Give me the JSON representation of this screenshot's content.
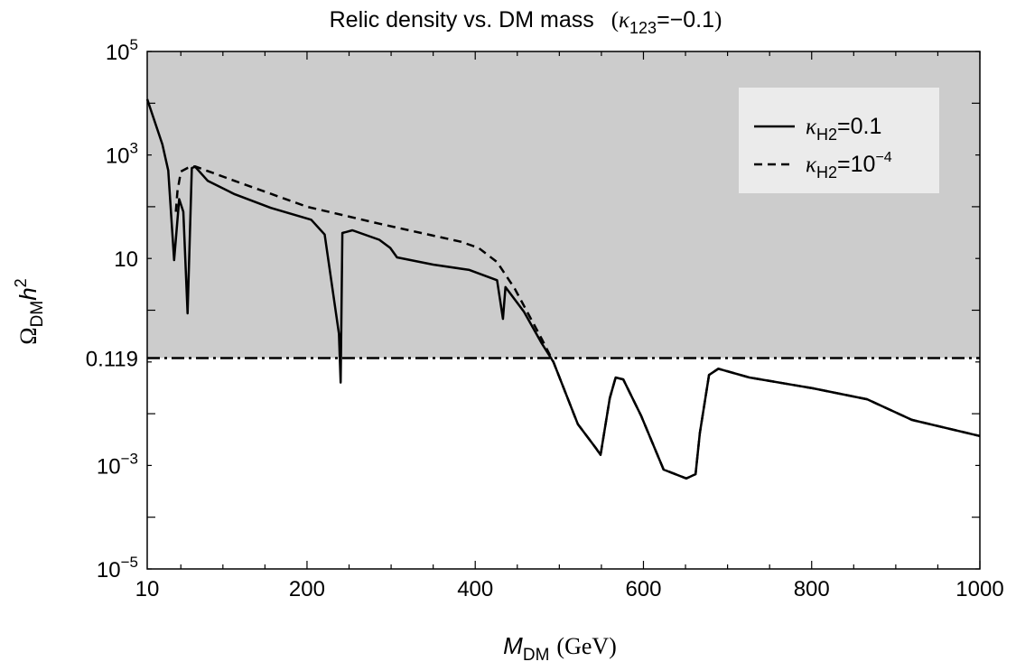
{
  "chart_data": {
    "type": "line",
    "title": {
      "main": "Relic density  vs. DM mass",
      "param_symbol": "κ",
      "param_sub": "123",
      "param_value": "=−0.1"
    },
    "xlabel": {
      "symbol": "M",
      "sub": "DM",
      "unit": "(GeV)"
    },
    "ylabel": {
      "symbol": "Ω",
      "sub": "DM",
      "h": "h",
      "sup": "2"
    },
    "xscale": "linear",
    "yscale": "log",
    "xlim": [
      10,
      1000
    ],
    "ylim": [
      1e-05,
      100000.0
    ],
    "xticks": [
      10,
      200,
      400,
      600,
      800,
      1000
    ],
    "xtick_labels": [
      "10",
      "200",
      "400",
      "600",
      "800",
      "1000"
    ],
    "yticks": [
      {
        "value": 100000,
        "base": "10",
        "exp": "5"
      },
      {
        "value": 1000,
        "base": "10",
        "exp": "3"
      },
      {
        "value": 10,
        "base": "10",
        "exp": ""
      },
      {
        "value": 0.119,
        "base": "0.119",
        "exp": ""
      },
      {
        "value": 0.001,
        "base": "10",
        "exp": "−3"
      },
      {
        "value": 1e-05,
        "base": "10",
        "exp": "−5"
      }
    ],
    "excluded_region": {
      "above": 0.119,
      "color": "#cccccc"
    },
    "reference_line": {
      "y": 0.119,
      "style": "dash-dot"
    },
    "legend": {
      "placement": "top-right",
      "background": "#ebebeb"
    },
    "series": [
      {
        "name": "κH2=0.1",
        "label_symbol": "κ",
        "label_sub": "H2",
        "label_value": "=0.1",
        "label_sup": "",
        "style": "solid",
        "color": "#000000",
        "x": [
          10,
          28,
          35,
          42,
          48,
          53,
          58,
          63,
          67,
          82,
          114,
          157,
          205,
          221,
          238,
          240,
          242,
          254,
          286,
          299,
          307,
          350,
          393,
          426,
          433,
          436,
          458,
          479,
          493,
          522,
          544,
          549,
          560,
          567,
          576,
          597,
          624,
          651,
          662,
          667,
          678,
          689,
          726,
          801,
          866,
          919,
          1000
        ],
        "y": [
          12000,
          1600,
          500,
          9.3,
          140,
          80,
          0.87,
          560,
          590,
          316,
          174,
          95,
          56,
          29,
          0.35,
          0.04,
          31,
          35,
          23,
          16,
          10.5,
          7.6,
          6,
          3.8,
          0.68,
          2.8,
          0.93,
          0.23,
          0.1,
          0.0063,
          0.0021,
          0.0016,
          0.02,
          0.05,
          0.046,
          0.0093,
          0.00083,
          0.00056,
          0.00068,
          0.0042,
          0.056,
          0.074,
          0.05,
          0.031,
          0.019,
          0.0076,
          0.0037
        ]
      },
      {
        "name": "κH2=10^-4",
        "label_symbol": "κ",
        "label_sub": "H2",
        "label_value": "=10",
        "label_sup": "−4",
        "style": "dashed",
        "color": "#000000",
        "x": [
          44,
          46,
          50,
          58,
          63,
          67,
          114,
          200,
          286,
          383,
          404,
          426,
          447,
          479,
          493,
          522,
          544,
          549,
          560,
          567,
          576,
          597,
          624,
          651,
          662,
          667,
          678,
          689,
          726,
          801,
          866,
          919,
          1000
        ],
        "y": [
          80,
          200,
          480,
          560,
          590,
          600,
          316,
          100,
          47,
          21,
          16,
          8.5,
          2.6,
          0.28,
          0.1,
          0.0063,
          0.0021,
          0.0016,
          0.02,
          0.05,
          0.046,
          0.0093,
          0.00083,
          0.00056,
          0.00068,
          0.0042,
          0.056,
          0.074,
          0.05,
          0.031,
          0.019,
          0.0076,
          0.0037
        ]
      }
    ]
  }
}
